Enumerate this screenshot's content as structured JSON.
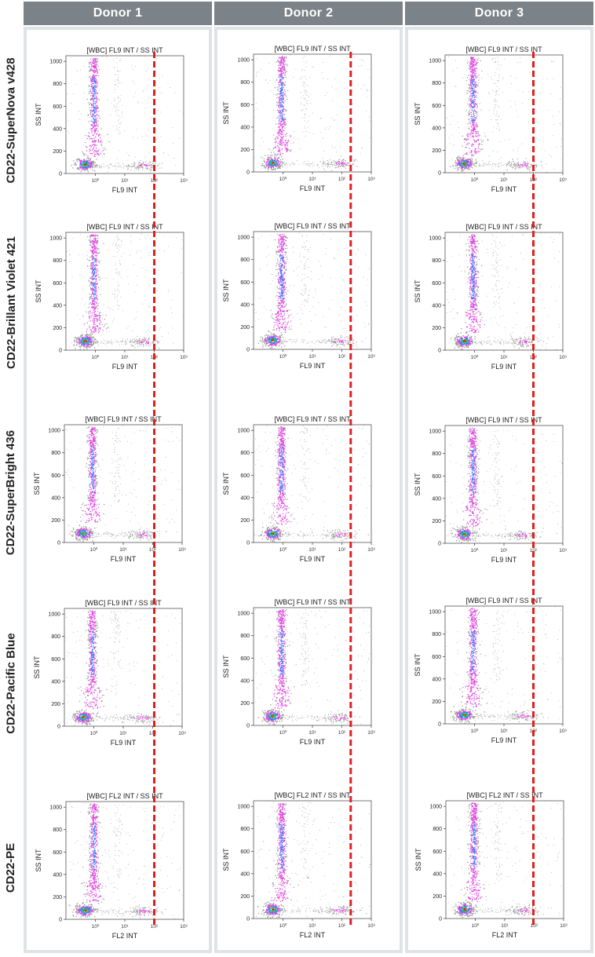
{
  "columns": [
    "Donor 1",
    "Donor 2",
    "Donor 3"
  ],
  "rows": [
    "CD22-SuperNova v428",
    "CD22-Brillant Violet 421",
    "CD22-SuperBright 436",
    "CD22-Pacific Blue",
    "CD22-PE"
  ],
  "colors": {
    "header_bg": "#7b8389",
    "column_bg": "#dfe3e6",
    "cutoff_line": "#e02020",
    "density_low": "#9a9a9a",
    "density_mid": "#e040e0",
    "density_high": "#3a7bff",
    "density_top": "#22cc55",
    "density_peak": "#dd2222"
  },
  "chart_data": {
    "type": "scatter",
    "layout": "grid 5 rows x 3 columns of density dot plots",
    "y_ticks": [
      "0",
      "200",
      "400",
      "600",
      "800",
      "1000"
    ],
    "x_ticks": [
      "10⁰",
      "10¹",
      "10²",
      "10³"
    ],
    "ylim": [
      0,
      1050
    ],
    "x_scale": "log",
    "cutoff_lines": [
      {
        "column": "Donor 1",
        "x": 100
      },
      {
        "column": "Donor 2",
        "x": 200
      },
      {
        "column": "Donor 3",
        "x": 100
      }
    ],
    "plots": [
      {
        "title": "[WBC] FL9 INT / SS INT",
        "xlabel": "FL9 INT",
        "ylabel": "SS INT"
      },
      {
        "title": "[WBC] FL9 INT / SS INT",
        "xlabel": "FL9 INT",
        "ylabel": "SS INT"
      },
      {
        "title": "[WBC] FL9 INT / SS INT",
        "xlabel": "FL9 INT",
        "ylabel": "SS INT"
      },
      {
        "title": "[WBC] FL9 INT / SS INT",
        "xlabel": "FL9 INT",
        "ylabel": "SS INT"
      },
      {
        "title": "[WBC] FL9 INT / SS INT",
        "xlabel": "FL9 INT",
        "ylabel": "SS INT"
      },
      {
        "title": "[WBC] FL9 INT / SS INT",
        "xlabel": "FL9 INT",
        "ylabel": "SS INT"
      },
      {
        "title": "[WBC] FL9 INT / SS INT",
        "xlabel": "FL9 INT",
        "ylabel": "SS INT"
      },
      {
        "title": "[WBC] FL9 INT / SS INT",
        "xlabel": "FL9 INT",
        "ylabel": "SS INT"
      },
      {
        "title": "[WBC] FL9 INT / SS INT",
        "xlabel": "FL9 INT",
        "ylabel": "SS INT"
      },
      {
        "title": "[WBC] FL9 INT / SS INT",
        "xlabel": "FL9 INT",
        "ylabel": "SS INT"
      },
      {
        "title": "[WBC] FL9 INT / SS INT",
        "xlabel": "FL9 INT",
        "ylabel": "SS INT"
      },
      {
        "title": "[WBC] FL9 INT / SS INT",
        "xlabel": "FL9 INT",
        "ylabel": "SS INT"
      },
      {
        "title": "[WBC] FL2 INT / SS INT",
        "xlabel": "FL2 INT",
        "ylabel": "SS INT"
      },
      {
        "title": "[WBC] FL2 INT / SS INT",
        "xlabel": "FL2 INT",
        "ylabel": "SS INT"
      },
      {
        "title": "[WBC] FL2 INT / SS INT",
        "xlabel": "FL2 INT",
        "ylabel": "SS INT"
      }
    ]
  }
}
